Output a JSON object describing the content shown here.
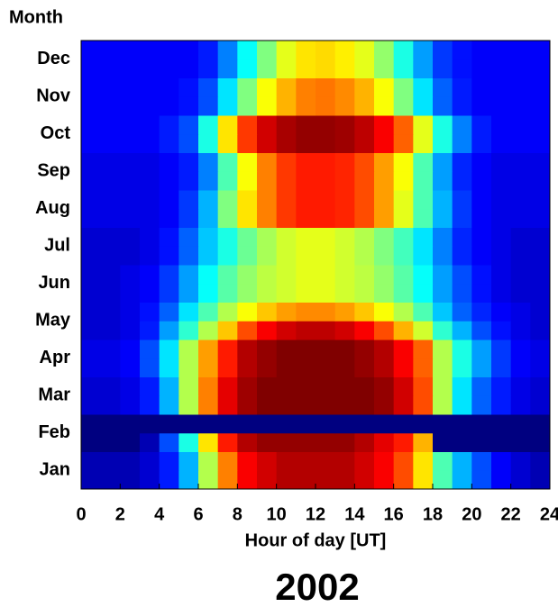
{
  "chart_data": {
    "type": "heatmap",
    "title": "2002",
    "xlabel": "Hour of day [UT]",
    "ylabel": "Month",
    "xlim": [
      0,
      24
    ],
    "xticks": [
      0,
      2,
      4,
      6,
      8,
      10,
      12,
      14,
      16,
      18,
      20,
      22,
      24
    ],
    "xbins": [
      0,
      1,
      2,
      3,
      4,
      5,
      6,
      7,
      8,
      9,
      10,
      11,
      12,
      13,
      14,
      15,
      16,
      17,
      18,
      19,
      20,
      21,
      22,
      23,
      24
    ],
    "categories": [
      "Jan",
      null,
      "Feb",
      null,
      "Mar",
      null,
      "Apr",
      null,
      "May",
      null,
      "Jun",
      null,
      "Jul",
      null,
      "Aug",
      null,
      "Sep",
      null,
      "Oct",
      null,
      "Nov",
      null,
      "Dec",
      null
    ],
    "colormap": "jet",
    "zlim": [
      0,
      100
    ],
    "values": [
      [
        5,
        5,
        5,
        8,
        15,
        30,
        55,
        75,
        88,
        92,
        95,
        95,
        95,
        95,
        92,
        88,
        80,
        65,
        45,
        30,
        20,
        12,
        8,
        5
      ],
      [
        5,
        5,
        5,
        8,
        15,
        30,
        55,
        75,
        88,
        92,
        95,
        95,
        95,
        95,
        92,
        88,
        80,
        65,
        45,
        30,
        20,
        12,
        8,
        5
      ],
      [
        0,
        0,
        0,
        5,
        20,
        40,
        65,
        85,
        95,
        98,
        98,
        98,
        98,
        98,
        95,
        90,
        85,
        70,
        0,
        0,
        0,
        0,
        0,
        0
      ],
      [
        0,
        0,
        0,
        0,
        0,
        0,
        0,
        0,
        0,
        0,
        0,
        0,
        0,
        0,
        0,
        0,
        0,
        0,
        0,
        0,
        0,
        0,
        0,
        0
      ],
      [
        8,
        8,
        10,
        15,
        30,
        55,
        75,
        90,
        97,
        100,
        100,
        100,
        100,
        100,
        100,
        98,
        92,
        80,
        55,
        35,
        22,
        15,
        10,
        8
      ],
      [
        8,
        8,
        10,
        15,
        30,
        55,
        75,
        90,
        97,
        100,
        100,
        100,
        100,
        100,
        100,
        98,
        92,
        80,
        55,
        35,
        22,
        15,
        10,
        8
      ],
      [
        10,
        10,
        12,
        20,
        35,
        55,
        72,
        85,
        95,
        98,
        100,
        100,
        100,
        100,
        98,
        95,
        88,
        78,
        55,
        40,
        28,
        18,
        12,
        10
      ],
      [
        10,
        10,
        12,
        20,
        35,
        55,
        72,
        85,
        95,
        98,
        100,
        100,
        100,
        100,
        98,
        95,
        88,
        78,
        55,
        40,
        28,
        18,
        12,
        10
      ],
      [
        8,
        8,
        10,
        15,
        28,
        42,
        55,
        68,
        80,
        88,
        92,
        94,
        94,
        92,
        88,
        80,
        70,
        58,
        42,
        30,
        20,
        14,
        10,
        8
      ],
      [
        8,
        8,
        10,
        14,
        22,
        35,
        45,
        55,
        62,
        68,
        72,
        74,
        74,
        72,
        68,
        62,
        55,
        45,
        32,
        22,
        16,
        12,
        10,
        8
      ],
      [
        8,
        8,
        10,
        12,
        18,
        28,
        38,
        46,
        52,
        56,
        58,
        60,
        60,
        58,
        56,
        52,
        46,
        38,
        28,
        20,
        14,
        10,
        8,
        8
      ],
      [
        8,
        8,
        10,
        12,
        18,
        28,
        38,
        46,
        52,
        56,
        58,
        60,
        60,
        58,
        56,
        52,
        46,
        38,
        28,
        20,
        14,
        10,
        8,
        8
      ],
      [
        8,
        8,
        8,
        10,
        14,
        22,
        32,
        40,
        48,
        54,
        58,
        60,
        60,
        58,
        55,
        50,
        44,
        35,
        25,
        16,
        12,
        10,
        8,
        8
      ],
      [
        8,
        8,
        8,
        10,
        14,
        22,
        32,
        40,
        48,
        54,
        58,
        60,
        60,
        58,
        55,
        50,
        44,
        35,
        25,
        16,
        12,
        10,
        8,
        8
      ],
      [
        10,
        10,
        10,
        10,
        12,
        18,
        30,
        50,
        65,
        75,
        82,
        85,
        85,
        84,
        80,
        72,
        60,
        45,
        30,
        18,
        12,
        10,
        10,
        10
      ],
      [
        10,
        10,
        10,
        10,
        12,
        18,
        30,
        50,
        65,
        75,
        82,
        85,
        85,
        84,
        80,
        72,
        60,
        45,
        30,
        18,
        12,
        10,
        10,
        10
      ],
      [
        10,
        10,
        10,
        10,
        12,
        15,
        25,
        45,
        62,
        75,
        82,
        85,
        85,
        84,
        80,
        72,
        62,
        45,
        28,
        16,
        12,
        10,
        10,
        10
      ],
      [
        10,
        10,
        10,
        10,
        12,
        15,
        25,
        45,
        62,
        75,
        82,
        85,
        85,
        84,
        80,
        72,
        62,
        45,
        28,
        16,
        12,
        10,
        10,
        10
      ],
      [
        12,
        12,
        12,
        12,
        15,
        20,
        40,
        65,
        82,
        92,
        96,
        98,
        98,
        97,
        94,
        88,
        78,
        60,
        40,
        25,
        15,
        12,
        12,
        12
      ],
      [
        12,
        12,
        12,
        12,
        15,
        20,
        40,
        65,
        82,
        92,
        96,
        98,
        98,
        97,
        94,
        88,
        78,
        60,
        40,
        25,
        15,
        12,
        12,
        12
      ],
      [
        12,
        12,
        12,
        12,
        12,
        14,
        20,
        35,
        50,
        62,
        70,
        75,
        76,
        74,
        70,
        62,
        50,
        35,
        22,
        15,
        12,
        12,
        12,
        12
      ],
      [
        12,
        12,
        12,
        12,
        12,
        14,
        20,
        35,
        50,
        62,
        70,
        75,
        76,
        74,
        70,
        62,
        50,
        35,
        22,
        15,
        12,
        12,
        12,
        12
      ],
      [
        12,
        12,
        12,
        12,
        12,
        12,
        15,
        25,
        38,
        50,
        60,
        65,
        66,
        64,
        60,
        52,
        40,
        28,
        18,
        14,
        12,
        12,
        12,
        12
      ],
      [
        12,
        12,
        12,
        12,
        12,
        12,
        15,
        25,
        38,
        50,
        60,
        65,
        66,
        64,
        60,
        52,
        40,
        28,
        18,
        14,
        12,
        12,
        12,
        12
      ]
    ]
  }
}
